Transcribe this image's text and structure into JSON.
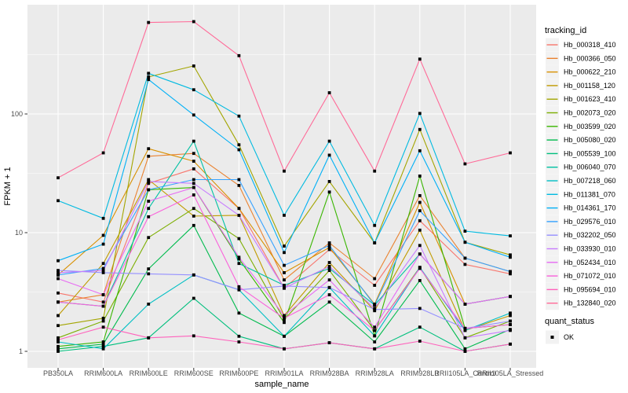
{
  "chart_data": {
    "type": "line",
    "xlabel": "sample_name",
    "ylabel": "FPKM + 1",
    "y_scale": "log10",
    "y_ticks": [
      1,
      10,
      100
    ],
    "y_tick_labels": [
      "1",
      "10",
      "100"
    ],
    "grid": true,
    "legend_position": "right",
    "panel_bg": "#EBEBEB",
    "grid_color": "#FFFFFF",
    "tick_label_color": "#4D4D4D",
    "axis_title_color": "#000000",
    "point_color": "#000000",
    "legend_key_bg": "#F2F2F2",
    "legend_title": "tracking_id",
    "quant_legend_title": "quant_status",
    "quant_legend_items": [
      {
        "label": "OK"
      }
    ],
    "categories": [
      "PB350LA",
      "RRIM600LA",
      "RRIM600LE",
      "RRIM600SE",
      "RRIM600PE",
      "RRIM901LA",
      "RRIM928BA",
      "RRIM928LA",
      "RRIM928LB",
      "RRII105LA_Control",
      "RRII105LA_Stressed"
    ],
    "series": [
      {
        "name": "Hb_000318_410",
        "color": "#F8766D",
        "values": [
          3.1,
          2.6,
          26,
          34.5,
          16,
          3.4,
          7.2,
          3.6,
          12.6,
          5.4,
          4.5
        ]
      },
      {
        "name": "Hb_000366_050",
        "color": "#EA8331",
        "values": [
          2.6,
          3.0,
          44,
          46.5,
          25,
          4.0,
          8.2,
          4.1,
          20.5,
          6.1,
          4.7
        ]
      },
      {
        "name": "Hb_000622_210",
        "color": "#D89000",
        "values": [
          4.4,
          9.5,
          51,
          40,
          16,
          4.6,
          7.5,
          2.5,
          18,
          2.5,
          2.9
        ]
      },
      {
        "name": "Hb_001158_120",
        "color": "#C09B00",
        "values": [
          2.0,
          5.5,
          28,
          13.8,
          14,
          2.0,
          5.6,
          2.2,
          10.5,
          1.5,
          2.0
        ]
      },
      {
        "name": "Hb_001623_410",
        "color": "#A3A500",
        "values": [
          1.65,
          1.9,
          205,
          254,
          55,
          7.7,
          27,
          8.2,
          74,
          8.3,
          6.5
        ]
      },
      {
        "name": "Hb_002073_020",
        "color": "#7CAE00",
        "values": [
          1.3,
          1.8,
          9.1,
          16,
          8.9,
          1.85,
          4.8,
          1.5,
          5.1,
          1.3,
          1.8
        ]
      },
      {
        "name": "Hb_003599_020",
        "color": "#39B600",
        "values": [
          1.1,
          1.2,
          23,
          24,
          6.0,
          1.75,
          22,
          1.35,
          30,
          1.56,
          1.68
        ]
      },
      {
        "name": "Hb_005080_020",
        "color": "#00BB4E",
        "values": [
          1.05,
          1.15,
          4.95,
          11.5,
          2.1,
          1.34,
          2.6,
          1.2,
          3.95,
          1.05,
          1.53
        ]
      },
      {
        "name": "Hb_005539_100",
        "color": "#00BF7D",
        "values": [
          1.0,
          1.1,
          1.3,
          2.8,
          1.34,
          1.05,
          1.18,
          1.05,
          1.6,
          1.0,
          1.15
        ]
      },
      {
        "name": "Hb_006040_070",
        "color": "#00C1A3",
        "values": [
          2.6,
          2.4,
          16,
          59,
          5.5,
          3.6,
          5.0,
          2.45,
          6.6,
          2.5,
          2.9
        ]
      },
      {
        "name": "Hb_007218_060",
        "color": "#00BFC4",
        "values": [
          1.2,
          1.05,
          2.5,
          4.4,
          3.3,
          1.34,
          3.45,
          1.35,
          5.1,
          1.5,
          2.1
        ]
      },
      {
        "name": "Hb_011381_070",
        "color": "#00BAE0",
        "values": [
          18.6,
          13.2,
          220,
          160,
          96,
          14,
          59,
          11.5,
          101,
          10.3,
          9.4
        ]
      },
      {
        "name": "Hb_014361_170",
        "color": "#00B0F6",
        "values": [
          5.8,
          8.0,
          195,
          98,
          50,
          6.8,
          45,
          8.2,
          49,
          8.3,
          6.2
        ]
      },
      {
        "name": "Hb_029576_010",
        "color": "#35A2FF",
        "values": [
          4.4,
          5.0,
          23,
          28,
          28,
          5.3,
          7.8,
          2.45,
          15.3,
          6.1,
          4.7
        ]
      },
      {
        "name": "Hb_032202_050",
        "color": "#9590FF",
        "values": [
          4.8,
          4.6,
          4.5,
          4.4,
          3.3,
          3.55,
          3.45,
          2.25,
          2.3,
          1.56,
          1.8
        ]
      },
      {
        "name": "Hb_033930_010",
        "color": "#C77CFF",
        "values": [
          4.6,
          4.8,
          27,
          26,
          14,
          3.4,
          5.2,
          2.3,
          7.8,
          1.3,
          1.5
        ]
      },
      {
        "name": "Hb_052434_010",
        "color": "#E76BF3",
        "values": [
          4.1,
          3.0,
          18.4,
          24,
          6.2,
          2.0,
          4.0,
          1.6,
          6.6,
          2.5,
          2.9
        ]
      },
      {
        "name": "Hb_071072_010",
        "color": "#FA62DB",
        "values": [
          2.6,
          2.4,
          13.6,
          20.8,
          3.5,
          1.9,
          3.0,
          1.5,
          5.0,
          1.56,
          1.68
        ]
      },
      {
        "name": "Hb_095694_010",
        "color": "#FF62BC",
        "values": [
          1.25,
          1.6,
          1.3,
          1.35,
          1.2,
          1.05,
          1.18,
          1.05,
          1.22,
          1.0,
          1.15
        ]
      },
      {
        "name": "Hb_132840_020",
        "color": "#FF6A98",
        "values": [
          29,
          47,
          590,
          600,
          310,
          33,
          151,
          33,
          290,
          38,
          47
        ]
      }
    ]
  }
}
